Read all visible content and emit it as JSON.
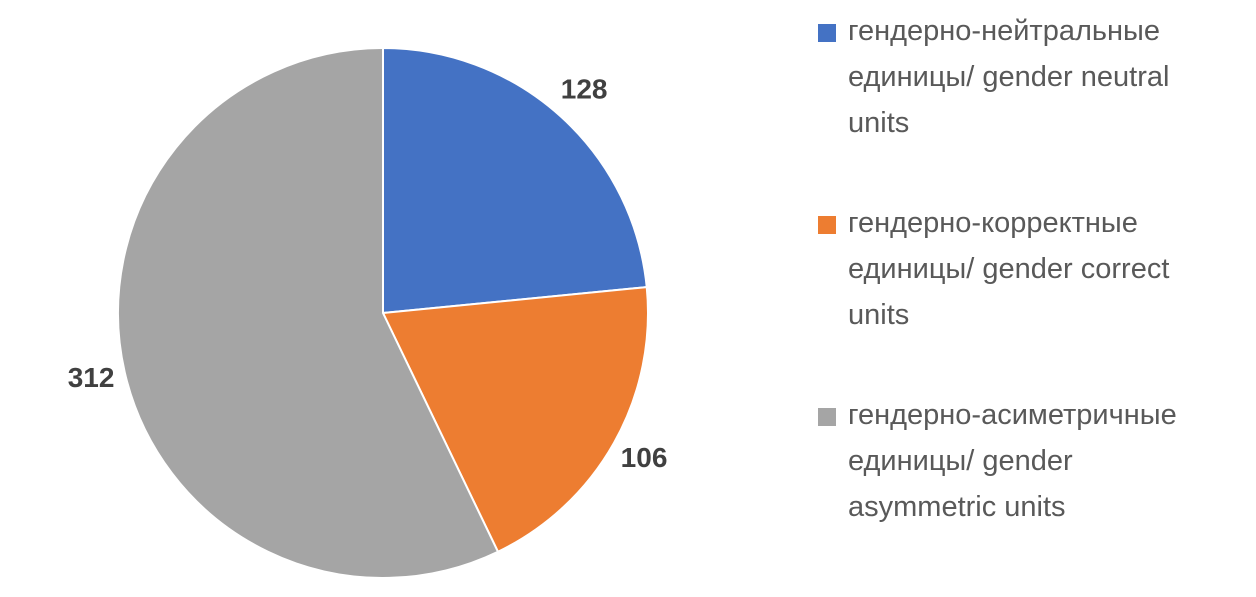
{
  "chart_data": {
    "type": "pie",
    "categories": [
      "гендерно-нейтральные единицы/ gender neutral units",
      "гендерно-корректные единицы/ gender correct units",
      "гендерно-асиметричные единицы/ gender asymmetric units"
    ],
    "values": [
      128,
      106,
      312
    ],
    "colors": [
      "#4472c4",
      "#ed7d31",
      "#a5a5a5"
    ],
    "legend": "right"
  }
}
